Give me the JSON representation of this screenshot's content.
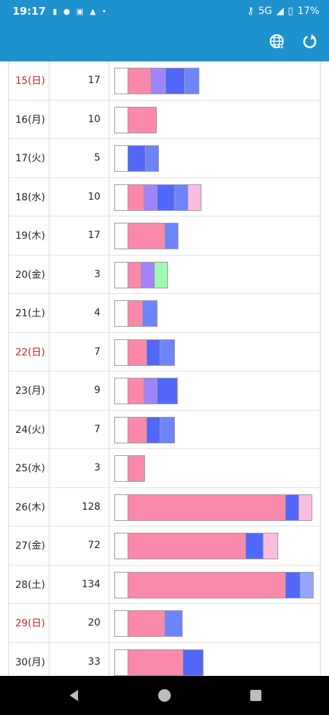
{
  "status": {
    "time": "19:17",
    "network": "5G",
    "battery": "17%"
  },
  "colors": {
    "appbar": "#1e92cf",
    "white": "#ffffff",
    "pink": "#fb89ac",
    "purple": "#a184fd",
    "blue": "#5168fb",
    "lightblue": "#6e84fb",
    "palepink": "#fbbde1",
    "green": "#a1f9b3",
    "paleblue": "#95a6fb",
    "sunday": "#cc2222"
  },
  "rows": [
    {
      "date": "15(日)",
      "count": "17",
      "sunday": true,
      "segs": [
        [
          "white",
          20
        ],
        [
          "pink",
          34
        ],
        [
          "purple",
          22
        ],
        [
          "blue",
          28
        ],
        [
          "lightblue",
          22
        ]
      ]
    },
    {
      "date": "16(月)",
      "count": "10",
      "sunday": false,
      "segs": [
        [
          "white",
          20
        ],
        [
          "pink",
          42
        ]
      ]
    },
    {
      "date": "17(火)",
      "count": "5",
      "sunday": false,
      "segs": [
        [
          "white",
          20
        ],
        [
          "blue",
          26
        ],
        [
          "lightblue",
          20
        ]
      ]
    },
    {
      "date": "18(水)",
      "count": "10",
      "sunday": false,
      "segs": [
        [
          "white",
          20
        ],
        [
          "pink",
          24
        ],
        [
          "purple",
          20
        ],
        [
          "blue",
          26
        ],
        [
          "lightblue",
          20
        ],
        [
          "palepink",
          20
        ]
      ]
    },
    {
      "date": "19(木)",
      "count": "17",
      "sunday": false,
      "segs": [
        [
          "white",
          20
        ],
        [
          "pink",
          54
        ],
        [
          "lightblue",
          20
        ]
      ]
    },
    {
      "date": "20(金)",
      "count": "3",
      "sunday": false,
      "segs": [
        [
          "white",
          20
        ],
        [
          "pink",
          20
        ],
        [
          "purple",
          20
        ],
        [
          "green",
          20
        ]
      ]
    },
    {
      "date": "21(土)",
      "count": "4",
      "sunday": false,
      "segs": [
        [
          "white",
          20
        ],
        [
          "pink",
          22
        ],
        [
          "lightblue",
          22
        ]
      ]
    },
    {
      "date": "22(日)",
      "count": "7",
      "sunday": true,
      "segs": [
        [
          "white",
          20
        ],
        [
          "pink",
          28
        ],
        [
          "blue",
          20
        ],
        [
          "lightblue",
          22
        ]
      ]
    },
    {
      "date": "23(月)",
      "count": "9",
      "sunday": false,
      "segs": [
        [
          "white",
          20
        ],
        [
          "pink",
          24
        ],
        [
          "purple",
          20
        ],
        [
          "blue",
          30
        ]
      ]
    },
    {
      "date": "24(火)",
      "count": "7",
      "sunday": false,
      "segs": [
        [
          "white",
          20
        ],
        [
          "pink",
          28
        ],
        [
          "blue",
          20
        ],
        [
          "lightblue",
          22
        ]
      ]
    },
    {
      "date": "25(水)",
      "count": "3",
      "sunday": false,
      "segs": [
        [
          "white",
          20
        ],
        [
          "pink",
          25
        ]
      ]
    },
    {
      "date": "26(木)",
      "count": "128",
      "sunday": false,
      "segs": [
        [
          "white",
          20
        ],
        [
          "pink",
          227
        ],
        [
          "blue",
          20
        ],
        [
          "palepink",
          20
        ]
      ]
    },
    {
      "date": "27(金)",
      "count": "72",
      "sunday": false,
      "segs": [
        [
          "white",
          20
        ],
        [
          "pink",
          170
        ],
        [
          "blue",
          26
        ],
        [
          "palepink",
          22
        ]
      ]
    },
    {
      "date": "28(土)",
      "count": "134",
      "sunday": false,
      "segs": [
        [
          "white",
          20
        ],
        [
          "pink",
          227
        ],
        [
          "blue",
          22
        ],
        [
          "paleblue",
          20
        ]
      ]
    },
    {
      "date": "29(日)",
      "count": "20",
      "sunday": true,
      "segs": [
        [
          "white",
          20
        ],
        [
          "pink",
          54
        ],
        [
          "lightblue",
          26
        ]
      ]
    },
    {
      "date": "30(月)",
      "count": "33",
      "sunday": false,
      "segs": [
        [
          "white",
          20
        ],
        [
          "pink",
          80
        ],
        [
          "blue",
          30
        ]
      ]
    }
  ]
}
